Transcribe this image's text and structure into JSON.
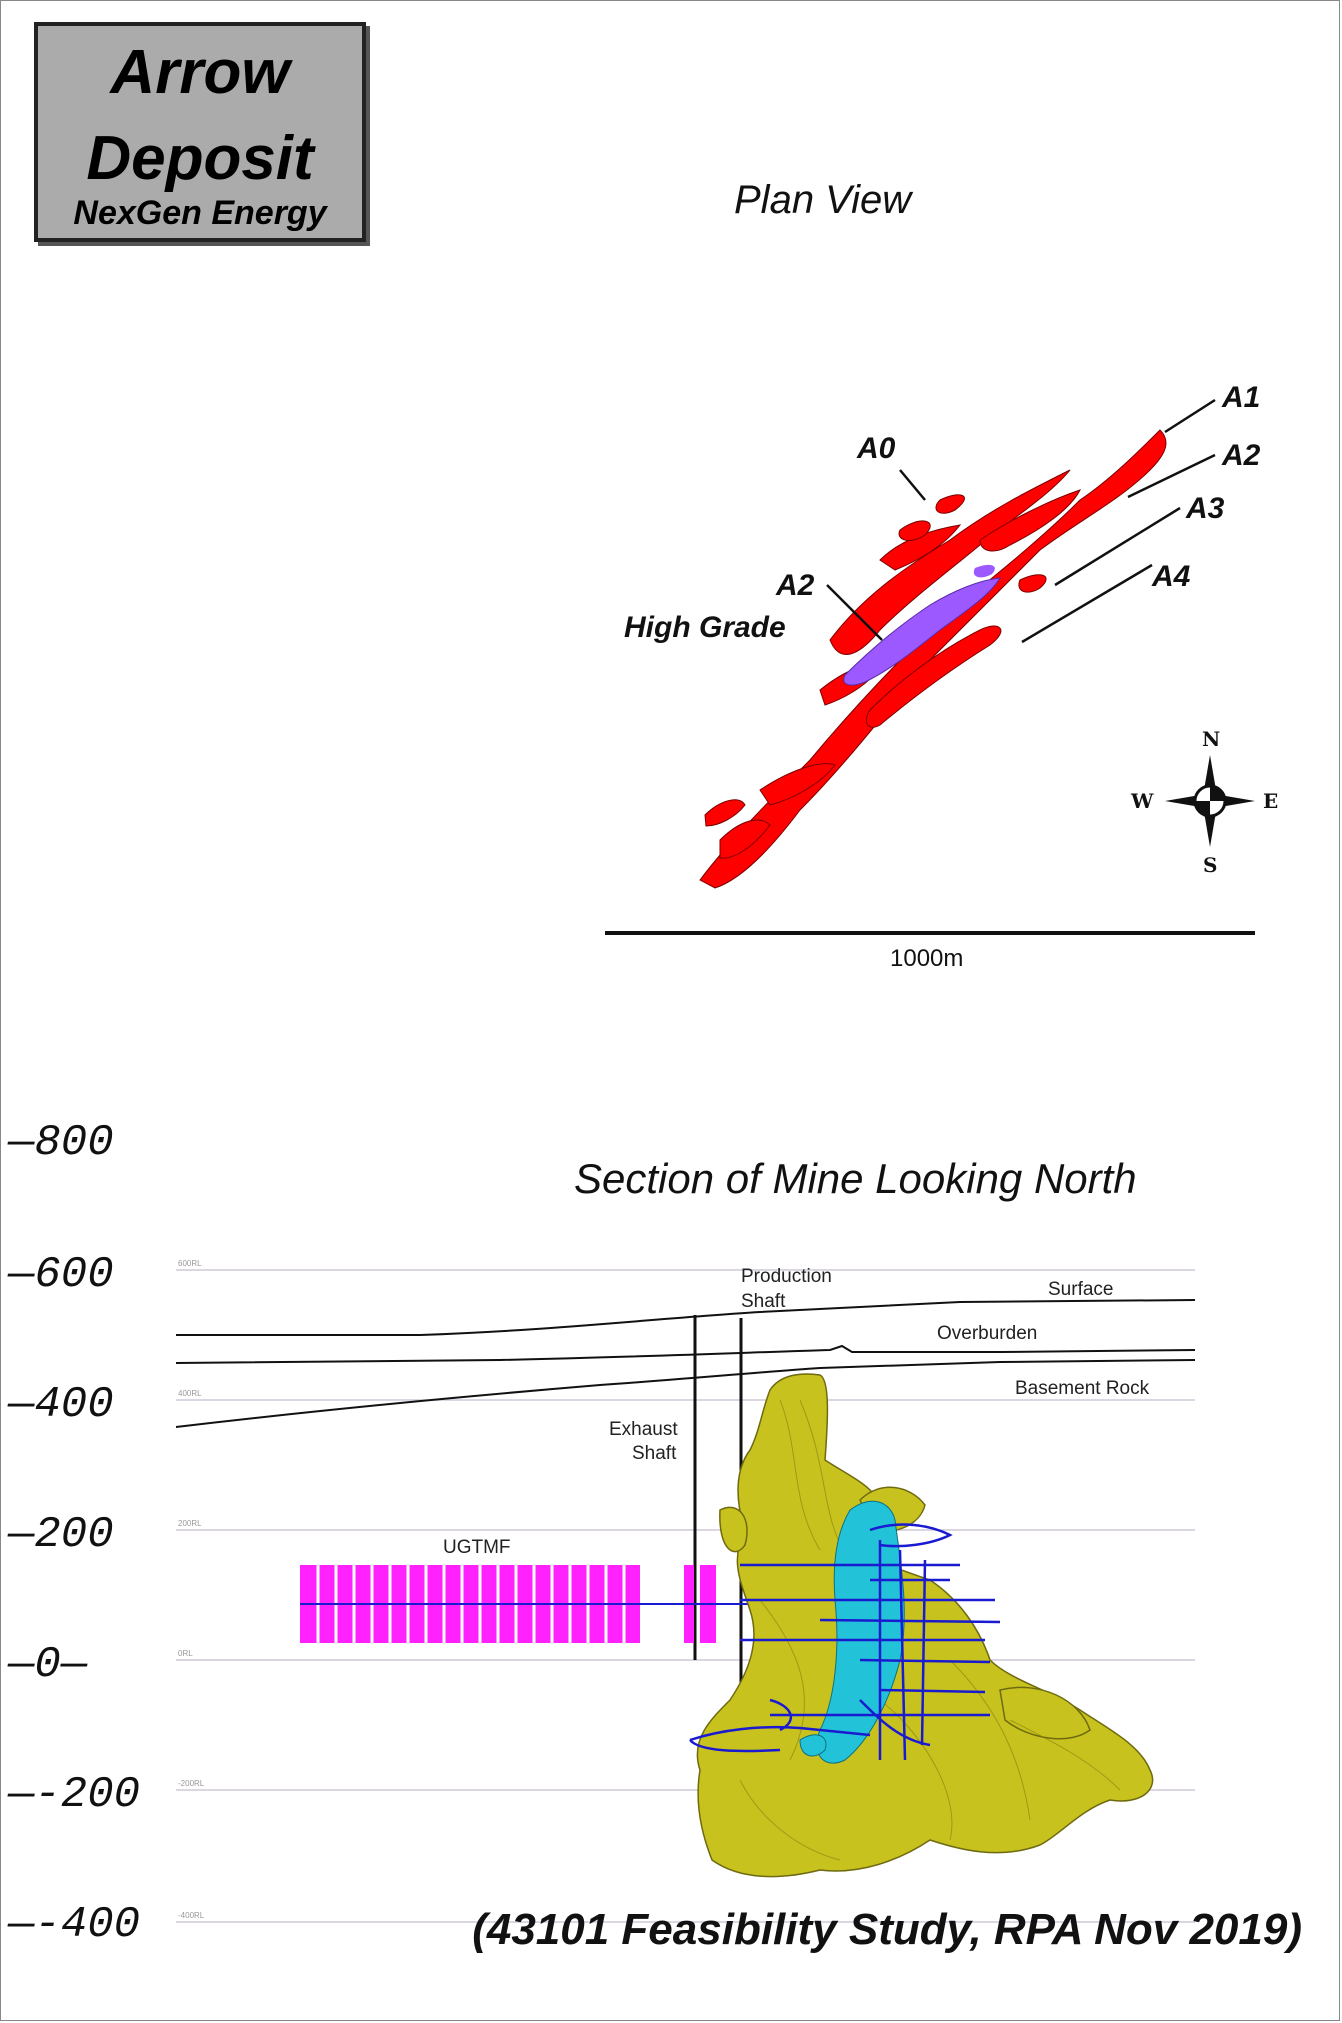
{
  "title": {
    "line1": "Arrow",
    "line2": "Deposit",
    "line3": "NexGen Energy"
  },
  "plan_view": {
    "title": "Plan View",
    "zones": [
      "A0",
      "A1",
      "A2",
      "A3",
      "A4"
    ],
    "high_grade_label": {
      "line1": "A2",
      "line2": "High Grade"
    },
    "scale_label": "1000m",
    "compass": {
      "n": "N",
      "s": "S",
      "e": "E",
      "w": "W"
    },
    "colors": {
      "mineralization": "#ff0000",
      "high_grade": "#9b59ff"
    }
  },
  "section_view": {
    "title": "Section of Mine Looking North",
    "elevation_ticks": [
      "—800",
      "—600",
      "—400",
      "—200",
      "—0—",
      "—-200",
      "—-400"
    ],
    "rl_labels": [
      "600RL",
      "400RL",
      "200RL",
      "0RL",
      "-200RL",
      "-400RL"
    ],
    "labels": {
      "production_shaft": {
        "line1": "Production",
        "line2": "Shaft"
      },
      "exhaust_shaft": {
        "line1": "Exhaust",
        "line2": "Shaft"
      },
      "surface": "Surface",
      "overburden": "Overburden",
      "basement_rock": "Basement Rock",
      "ugtmf": "UGTMF"
    },
    "colors": {
      "orebody": "#c8c21e",
      "ugtmf": "#ff22ff",
      "development": "#1a1ad0",
      "high_grade": "#22c3d8"
    }
  },
  "caption": "(43101 Feasibility Study, RPA Nov 2019)"
}
